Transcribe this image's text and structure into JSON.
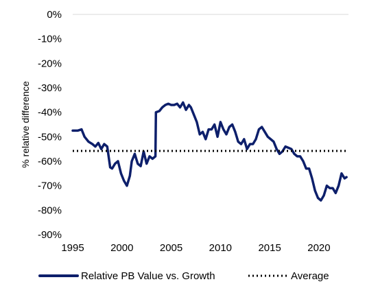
{
  "chart_data": {
    "type": "line",
    "title": "",
    "xlabel": "",
    "ylabel": "% relative difference",
    "xlim": [
      1995,
      2023
    ],
    "ylim": [
      -90,
      0
    ],
    "x_ticks": [
      1995,
      2000,
      2005,
      2010,
      2015,
      2020
    ],
    "x_tick_labels": [
      "1995",
      "2000",
      "2005",
      "2010",
      "2015",
      "2020"
    ],
    "y_ticks": [
      0,
      -10,
      -20,
      -30,
      -40,
      -50,
      -60,
      -70,
      -80,
      -90
    ],
    "y_tick_labels": [
      "0%",
      "-10%",
      "-20%",
      "-30%",
      "-40%",
      "-50%",
      "-60%",
      "-70%",
      "-80%",
      "-90%"
    ],
    "grid": "none",
    "legend_position": "bottom",
    "series": [
      {
        "name": "Relative PB Value vs. Growth",
        "color": "#0d1f6b",
        "style": "solid",
        "x": [
          1995.0,
          1995.5,
          1995.9,
          1996.2,
          1996.6,
          1997.0,
          1997.3,
          1997.6,
          1997.9,
          1998.2,
          1998.5,
          1998.8,
          1999.0,
          1999.3,
          1999.6,
          1999.9,
          2000.2,
          2000.5,
          2000.8,
          2001.0,
          2001.3,
          2001.6,
          2001.9,
          2002.2,
          2002.5,
          2002.8,
          2003.1,
          2003.4,
          2003.45,
          2003.8,
          2004.1,
          2004.4,
          2004.7,
          2005.0,
          2005.3,
          2005.6,
          2005.9,
          2006.2,
          2006.5,
          2006.8,
          2007.0,
          2007.3,
          2007.6,
          2007.9,
          2008.2,
          2008.5,
          2008.8,
          2009.1,
          2009.4,
          2009.7,
          2010.0,
          2010.3,
          2010.6,
          2010.9,
          2011.2,
          2011.5,
          2011.8,
          2012.1,
          2012.4,
          2012.7,
          2013.0,
          2013.3,
          2013.6,
          2013.9,
          2014.2,
          2014.5,
          2014.8,
          2015.1,
          2015.4,
          2015.7,
          2016.0,
          2016.3,
          2016.6,
          2016.9,
          2017.2,
          2017.5,
          2017.8,
          2018.1,
          2018.4,
          2018.7,
          2019.0,
          2019.3,
          2019.6,
          2019.9,
          2020.2,
          2020.5,
          2020.8,
          2021.1,
          2021.4,
          2021.7,
          2022.0,
          2022.3,
          2022.6,
          2022.8
        ],
        "values": [
          -47.5,
          -47.5,
          -47,
          -50,
          -52,
          -53,
          -54,
          -52.5,
          -55,
          -53,
          -54,
          -62.5,
          -63,
          -61,
          -60,
          -65,
          -68,
          -70,
          -66,
          -60,
          -57,
          -61,
          -62,
          -56,
          -61,
          -58,
          -59,
          -58,
          -40,
          -39.5,
          -38,
          -37,
          -36.5,
          -37,
          -37,
          -36.5,
          -38,
          -36,
          -39,
          -37,
          -38,
          -41,
          -44,
          -49,
          -48,
          -51,
          -47,
          -47,
          -45,
          -50,
          -44,
          -47,
          -49,
          -46,
          -45,
          -48,
          -52,
          -53,
          -51,
          -55,
          -53,
          -53,
          -51,
          -47,
          -46,
          -48,
          -50,
          -51,
          -52,
          -55,
          -57,
          -56,
          -54,
          -54.5,
          -55,
          -57,
          -58,
          -58,
          -60,
          -63,
          -63,
          -67,
          -72,
          -75,
          -76,
          -74,
          -70,
          -71,
          -71,
          -73,
          -70,
          -65,
          -67,
          -66.5
        ]
      },
      {
        "name": "Average",
        "color": "#000000",
        "style": "dotted",
        "x": [
          1995.0,
          2023.0
        ],
        "values": [
          -55.8,
          -55.8
        ]
      }
    ]
  }
}
